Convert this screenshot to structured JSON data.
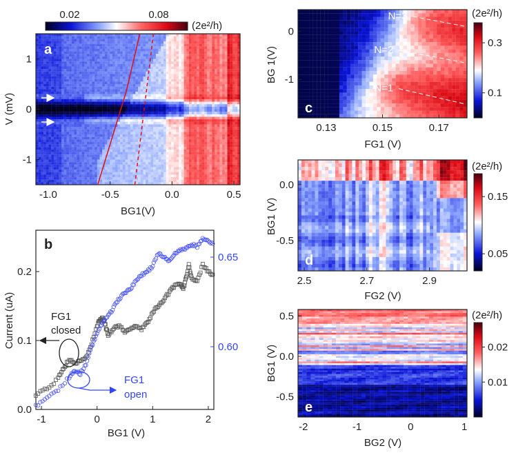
{
  "chart_data": [
    {
      "type": "heatmap",
      "panel": "a",
      "xlabel": "BG1(V)",
      "ylabel": "V (mV)",
      "xlim": [
        -1.1,
        0.55
      ],
      "ylim": [
        -1.5,
        1.5
      ],
      "xticks": [
        "-1.0",
        "-0.5",
        "0.0",
        "0.5"
      ],
      "yticks": [
        "1",
        "0",
        "-1"
      ],
      "colorbar_ticks": [
        "0.02",
        "0.08"
      ],
      "colorbar_unit": "(2e²/h)",
      "colorbar_range": [
        0.0,
        0.12
      ],
      "annotations": {
        "arrows_at_mV": [
          0.25,
          -0.25
        ],
        "line_solid": [
          [
            -0.6,
            -1.5
          ],
          [
            -0.37,
            0.35
          ]
        ],
        "line_solid_upper": [
          [
            -0.37,
            0.35
          ],
          [
            -0.26,
            1.5
          ]
        ],
        "line_dashed": [
          [
            -0.3,
            -1.5
          ],
          [
            -0.15,
            1.5
          ]
        ]
      }
    },
    {
      "type": "scatter",
      "panel": "b",
      "xlabel": "BG1 (V)",
      "ylabel": "Current (uA)",
      "xlim": [
        -1.1,
        2.1
      ],
      "ylim": [
        0.0,
        0.26
      ],
      "y2lim": [
        0.565,
        0.665
      ],
      "xticks": [
        "-1",
        "0",
        "1",
        "2"
      ],
      "yticks": [
        "0.0",
        "0.1",
        "0.2"
      ],
      "y2ticks": [
        "0.60",
        "0.65"
      ],
      "series": [
        {
          "name": "FG1 closed",
          "axis": "left",
          "color": "#555555",
          "x": [
            -1.1,
            -0.9,
            -0.7,
            -0.6,
            -0.5,
            -0.4,
            -0.3,
            -0.2,
            -0.1,
            0.0,
            0.05,
            0.1,
            0.15,
            0.2,
            0.3,
            0.4,
            0.5,
            0.6,
            0.7,
            0.8,
            0.9,
            1.0,
            1.1,
            1.2,
            1.3,
            1.4,
            1.5,
            1.55,
            1.6,
            1.65,
            1.7,
            1.8,
            1.9,
            2.0,
            2.1
          ],
          "y": [
            0.022,
            0.03,
            0.045,
            0.06,
            0.072,
            0.068,
            0.07,
            0.075,
            0.095,
            0.12,
            0.13,
            0.132,
            0.122,
            0.108,
            0.118,
            0.122,
            0.112,
            0.118,
            0.122,
            0.116,
            0.126,
            0.14,
            0.15,
            0.16,
            0.17,
            0.18,
            0.182,
            0.175,
            0.19,
            0.21,
            0.19,
            0.185,
            0.21,
            0.2,
            0.193
          ]
        },
        {
          "name": "FG1 open",
          "axis": "right",
          "color": "#4a55ff",
          "x": [
            -1.1,
            -0.9,
            -0.7,
            -0.5,
            -0.4,
            -0.3,
            -0.2,
            -0.1,
            0.0,
            0.1,
            0.2,
            0.3,
            0.4,
            0.5,
            0.6,
            0.7,
            0.8,
            0.9,
            1.0,
            1.1,
            1.2,
            1.3,
            1.4,
            1.5,
            1.6,
            1.7,
            1.8,
            1.9,
            2.0,
            2.1
          ],
          "y": [
            0.567,
            0.571,
            0.576,
            0.583,
            0.587,
            0.585,
            0.59,
            0.6,
            0.608,
            0.613,
            0.617,
            0.622,
            0.627,
            0.63,
            0.632,
            0.637,
            0.64,
            0.642,
            0.645,
            0.652,
            0.65,
            0.648,
            0.652,
            0.654,
            0.655,
            0.657,
            0.656,
            0.66,
            0.659,
            0.657
          ]
        }
      ],
      "annotations": [
        "FG1",
        "closed",
        "FG1",
        "open"
      ]
    },
    {
      "type": "heatmap",
      "panel": "c",
      "xlabel": "FG1 (V)",
      "ylabel": "BG 1(V)",
      "xlim": [
        0.12,
        0.18
      ],
      "ylim": [
        -1.8,
        0.45
      ],
      "xticks": [
        "0.13",
        "0.15",
        "0.17"
      ],
      "yticks": [
        "0",
        "-1"
      ],
      "colorbar_ticks": [
        "0.3",
        "0.1"
      ],
      "colorbar_unit": "(2e²/h)",
      "colorbar_range": [
        0.0,
        0.38
      ],
      "annotations": [
        {
          "text": "N=3",
          "x": 0.152,
          "y": 0.25
        },
        {
          "text": "N=2",
          "x": 0.147,
          "y": -0.45
        },
        {
          "text": "N=1",
          "x": 0.147,
          "y": -1.25
        }
      ]
    },
    {
      "type": "heatmap",
      "panel": "d",
      "xlabel": "FG2 (V)",
      "ylabel": "BG1 (V)",
      "xlim": [
        2.48,
        3.02
      ],
      "ylim": [
        -0.77,
        0.22
      ],
      "xticks": [
        "2.5",
        "2.7",
        "2.9"
      ],
      "yticks": [
        "0.0",
        "-0.5"
      ],
      "colorbar_ticks": [
        "0.15",
        "0.05"
      ],
      "colorbar_unit": "(2e²/h)",
      "colorbar_range": [
        0.02,
        0.19
      ]
    },
    {
      "type": "heatmap",
      "panel": "e",
      "xlabel": "BG2 (V)",
      "ylabel": "BG1 (V)",
      "xlim": [
        -2.1,
        1.05
      ],
      "ylim": [
        -0.75,
        0.58
      ],
      "xticks": [
        "-2",
        "-1",
        "0",
        "1"
      ],
      "yticks": [
        "0.5",
        "0.0",
        "-0.5"
      ],
      "colorbar_ticks": [
        "0.02",
        "0.01"
      ],
      "colorbar_unit": "(2e²/h)",
      "colorbar_range": [
        0.0,
        0.027
      ]
    }
  ]
}
